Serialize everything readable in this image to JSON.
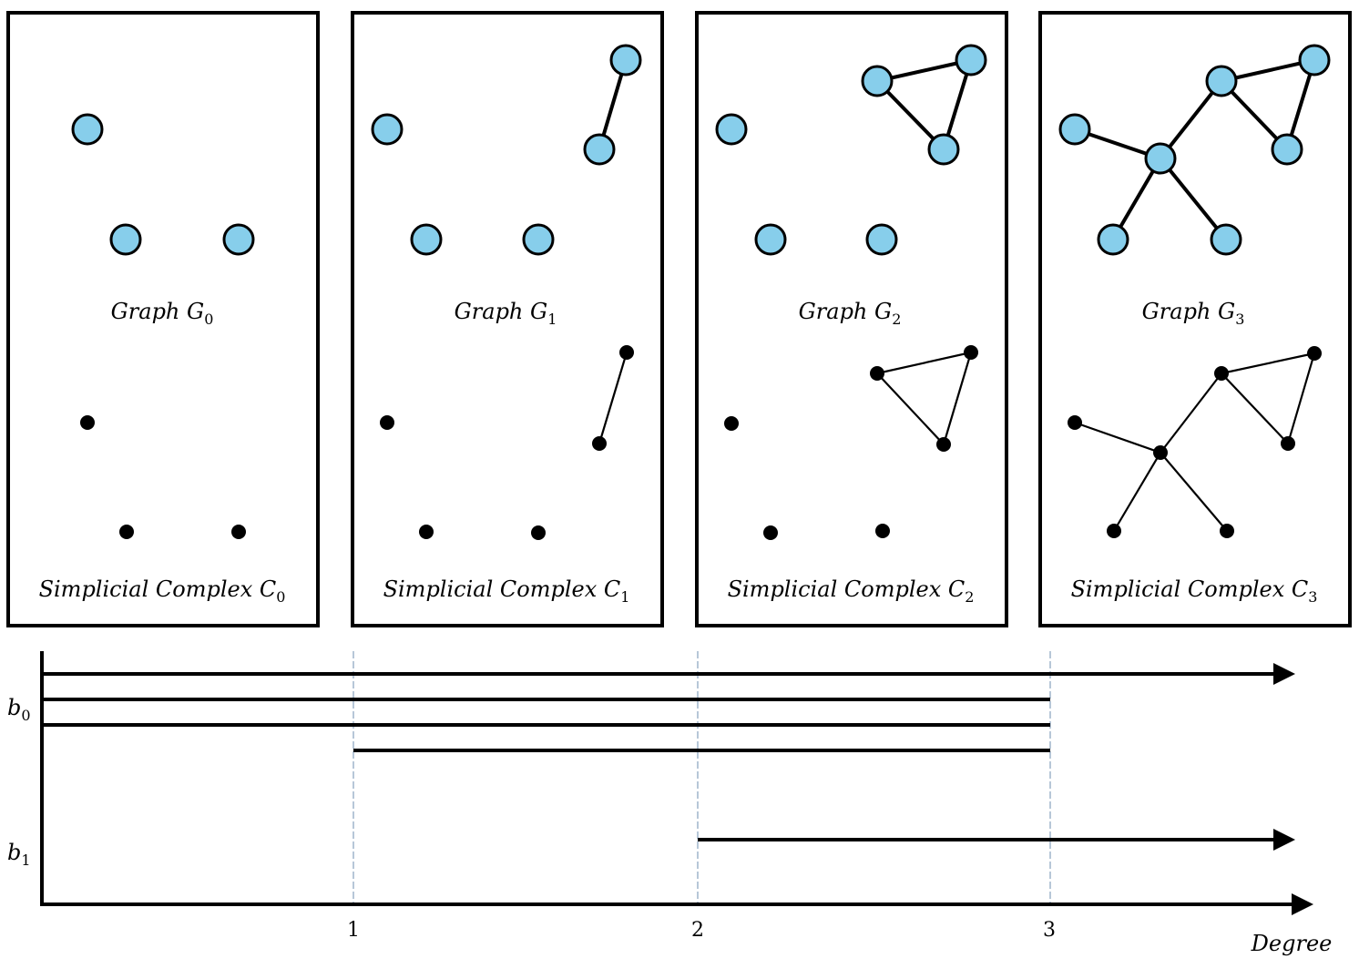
{
  "colors": {
    "graph_node_fill": "#87ceeb",
    "line": "#000000",
    "guide": "#6f8fb0"
  },
  "panels": [
    {
      "graph_prefix": "Graph ",
      "complex_prefix": "Simplicial Complex ",
      "graph_symbol": "G",
      "complex_symbol": "C",
      "subscript": "0"
    },
    {
      "graph_prefix": "Graph ",
      "complex_prefix": "Simplicial Complex ",
      "graph_symbol": "G",
      "complex_symbol": "C",
      "subscript": "1"
    },
    {
      "graph_prefix": "Graph ",
      "complex_prefix": "Simplicial Complex ",
      "graph_symbol": "G",
      "complex_symbol": "C",
      "subscript": "2"
    },
    {
      "graph_prefix": "Graph ",
      "complex_prefix": "Simplicial Complex ",
      "graph_symbol": "G",
      "complex_symbol": "C",
      "subscript": "3"
    }
  ],
  "barcode": {
    "xlabel": "Degree",
    "ticks": [
      "1",
      "2",
      "3"
    ],
    "b0_label": {
      "symbol": "b",
      "sub": "0"
    },
    "b1_label": {
      "symbol": "b",
      "sub": "1"
    },
    "b0_bars": [
      {
        "birth": 0,
        "death": null
      },
      {
        "birth": 0,
        "death": 3
      },
      {
        "birth": 0,
        "death": 3
      },
      {
        "birth": 1,
        "death": 3
      }
    ],
    "b1_bars": [
      {
        "birth": 2,
        "death": null
      }
    ]
  }
}
